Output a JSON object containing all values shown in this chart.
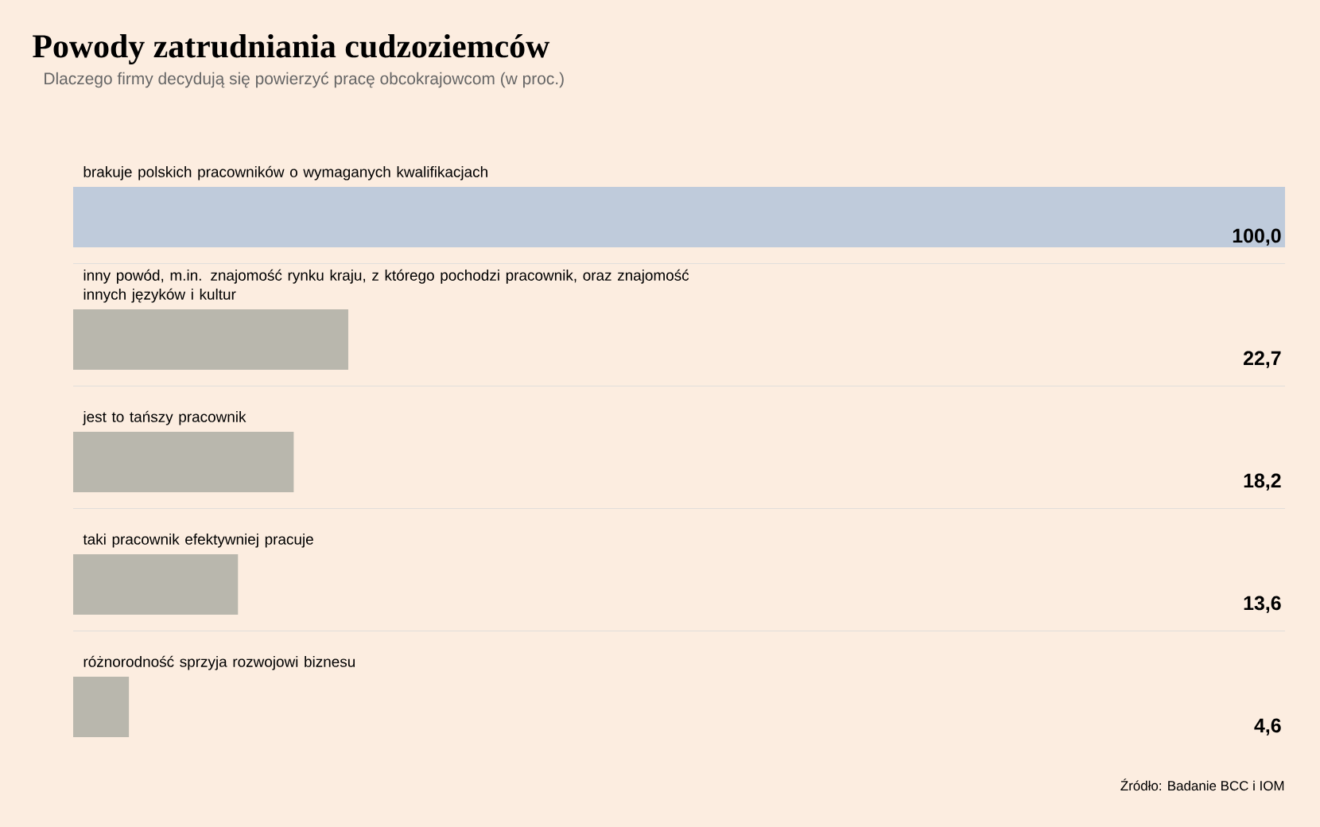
{
  "chart_data": {
    "type": "bar",
    "orientation": "horizontal",
    "title": "Powody zatrudniania cudzoziemców",
    "subtitle": "Dlaczego firmy decydują się powierzyć pracę obcokrajowcom (w proc.)",
    "categories": [
      "brakuje polskich pracowników o wymaganych kwalifikacjach",
      "inny powód, m.in. znajomość rynku kraju, z którego pochodzi pracownik, oraz znajomość innych języków i kultur",
      "jest to tańszy pracownik",
      "taki pracownik efektywniej pracuje",
      "różnorodność sprzyja rozwojowi biznesu"
    ],
    "values": [
      100.0,
      22.7,
      18.2,
      13.6,
      4.6
    ],
    "value_labels": [
      "100,0",
      "22,7",
      "18,2",
      "13,6",
      "4,6"
    ],
    "colors": [
      "#bfcbdb",
      "#b9b7ad",
      "#b9b7ad",
      "#b9b7ad",
      "#b9b7ad"
    ],
    "xlim": [
      0,
      100
    ],
    "annotations": [
      "Źródło: Badanie BCC i IOM"
    ]
  }
}
